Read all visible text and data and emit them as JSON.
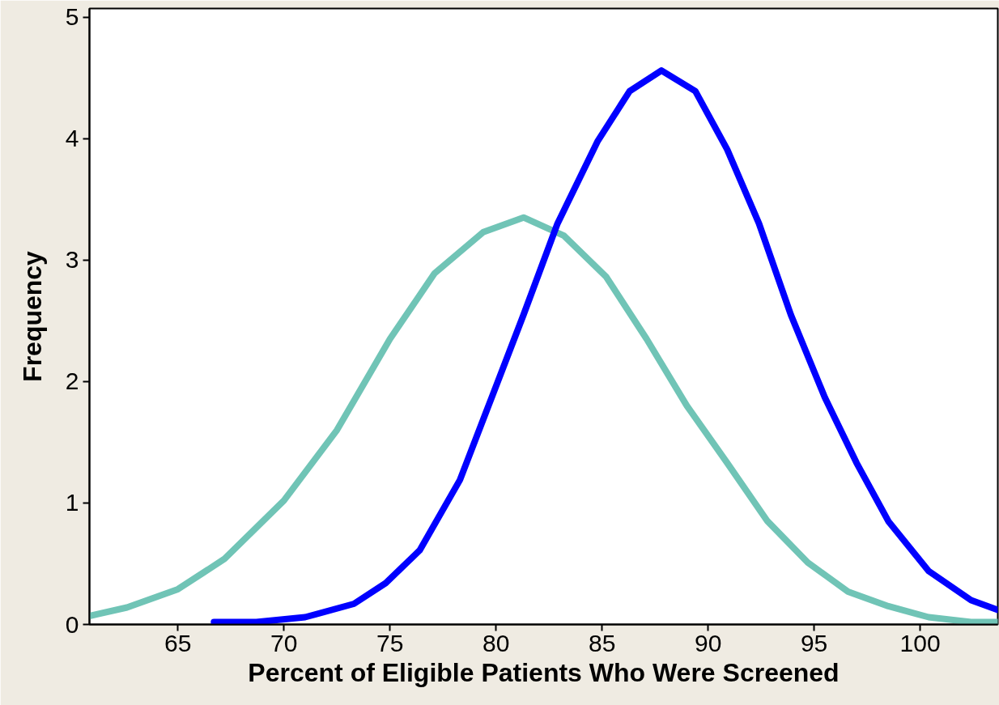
{
  "chart_data": {
    "type": "line",
    "xlabel": "Percent of Eligible Patients Who Were Screened",
    "ylabel": "Frequency",
    "xlim": [
      60.83,
      103.66
    ],
    "ylim": [
      0,
      5.07
    ],
    "xticks": [
      65,
      70,
      75,
      80,
      85,
      90,
      95,
      100
    ],
    "yticks": [
      0,
      1,
      2,
      3,
      4,
      5
    ],
    "grid": false,
    "line_style": "solid",
    "marker": "none",
    "series": [
      {
        "color": "#70c4b6",
        "x": [
          60.83,
          62.6,
          65,
          67.2,
          70.0,
          72.5,
          75.0,
          77.1,
          79.4,
          81.3,
          83.2,
          85.2,
          87.1,
          89.0,
          90.9,
          92.8,
          94.7,
          96.6,
          98.5,
          100.4,
          102.4,
          103.66
        ],
        "values": [
          0.07,
          0.14,
          0.29,
          0.54,
          1.02,
          1.6,
          2.35,
          2.89,
          3.23,
          3.35,
          3.2,
          2.86,
          2.35,
          1.8,
          1.33,
          0.85,
          0.51,
          0.27,
          0.15,
          0.06,
          0.02,
          0.02
        ]
      },
      {
        "color": "#0000ff",
        "x": [
          66.7,
          68.7,
          71.0,
          73.3,
          74.8,
          76.4,
          78.3,
          79.8,
          81.3,
          82.9,
          84.8,
          86.3,
          87.8,
          89.4,
          90.9,
          92.4,
          93.9,
          95.5,
          97.0,
          98.5,
          100.4,
          102.4,
          103.66
        ],
        "values": [
          0.02,
          0.02,
          0.06,
          0.17,
          0.34,
          0.61,
          1.19,
          1.87,
          2.55,
          3.3,
          3.98,
          4.39,
          4.56,
          4.39,
          3.91,
          3.3,
          2.55,
          1.87,
          1.33,
          0.85,
          0.44,
          0.2,
          0.12
        ]
      }
    ]
  }
}
